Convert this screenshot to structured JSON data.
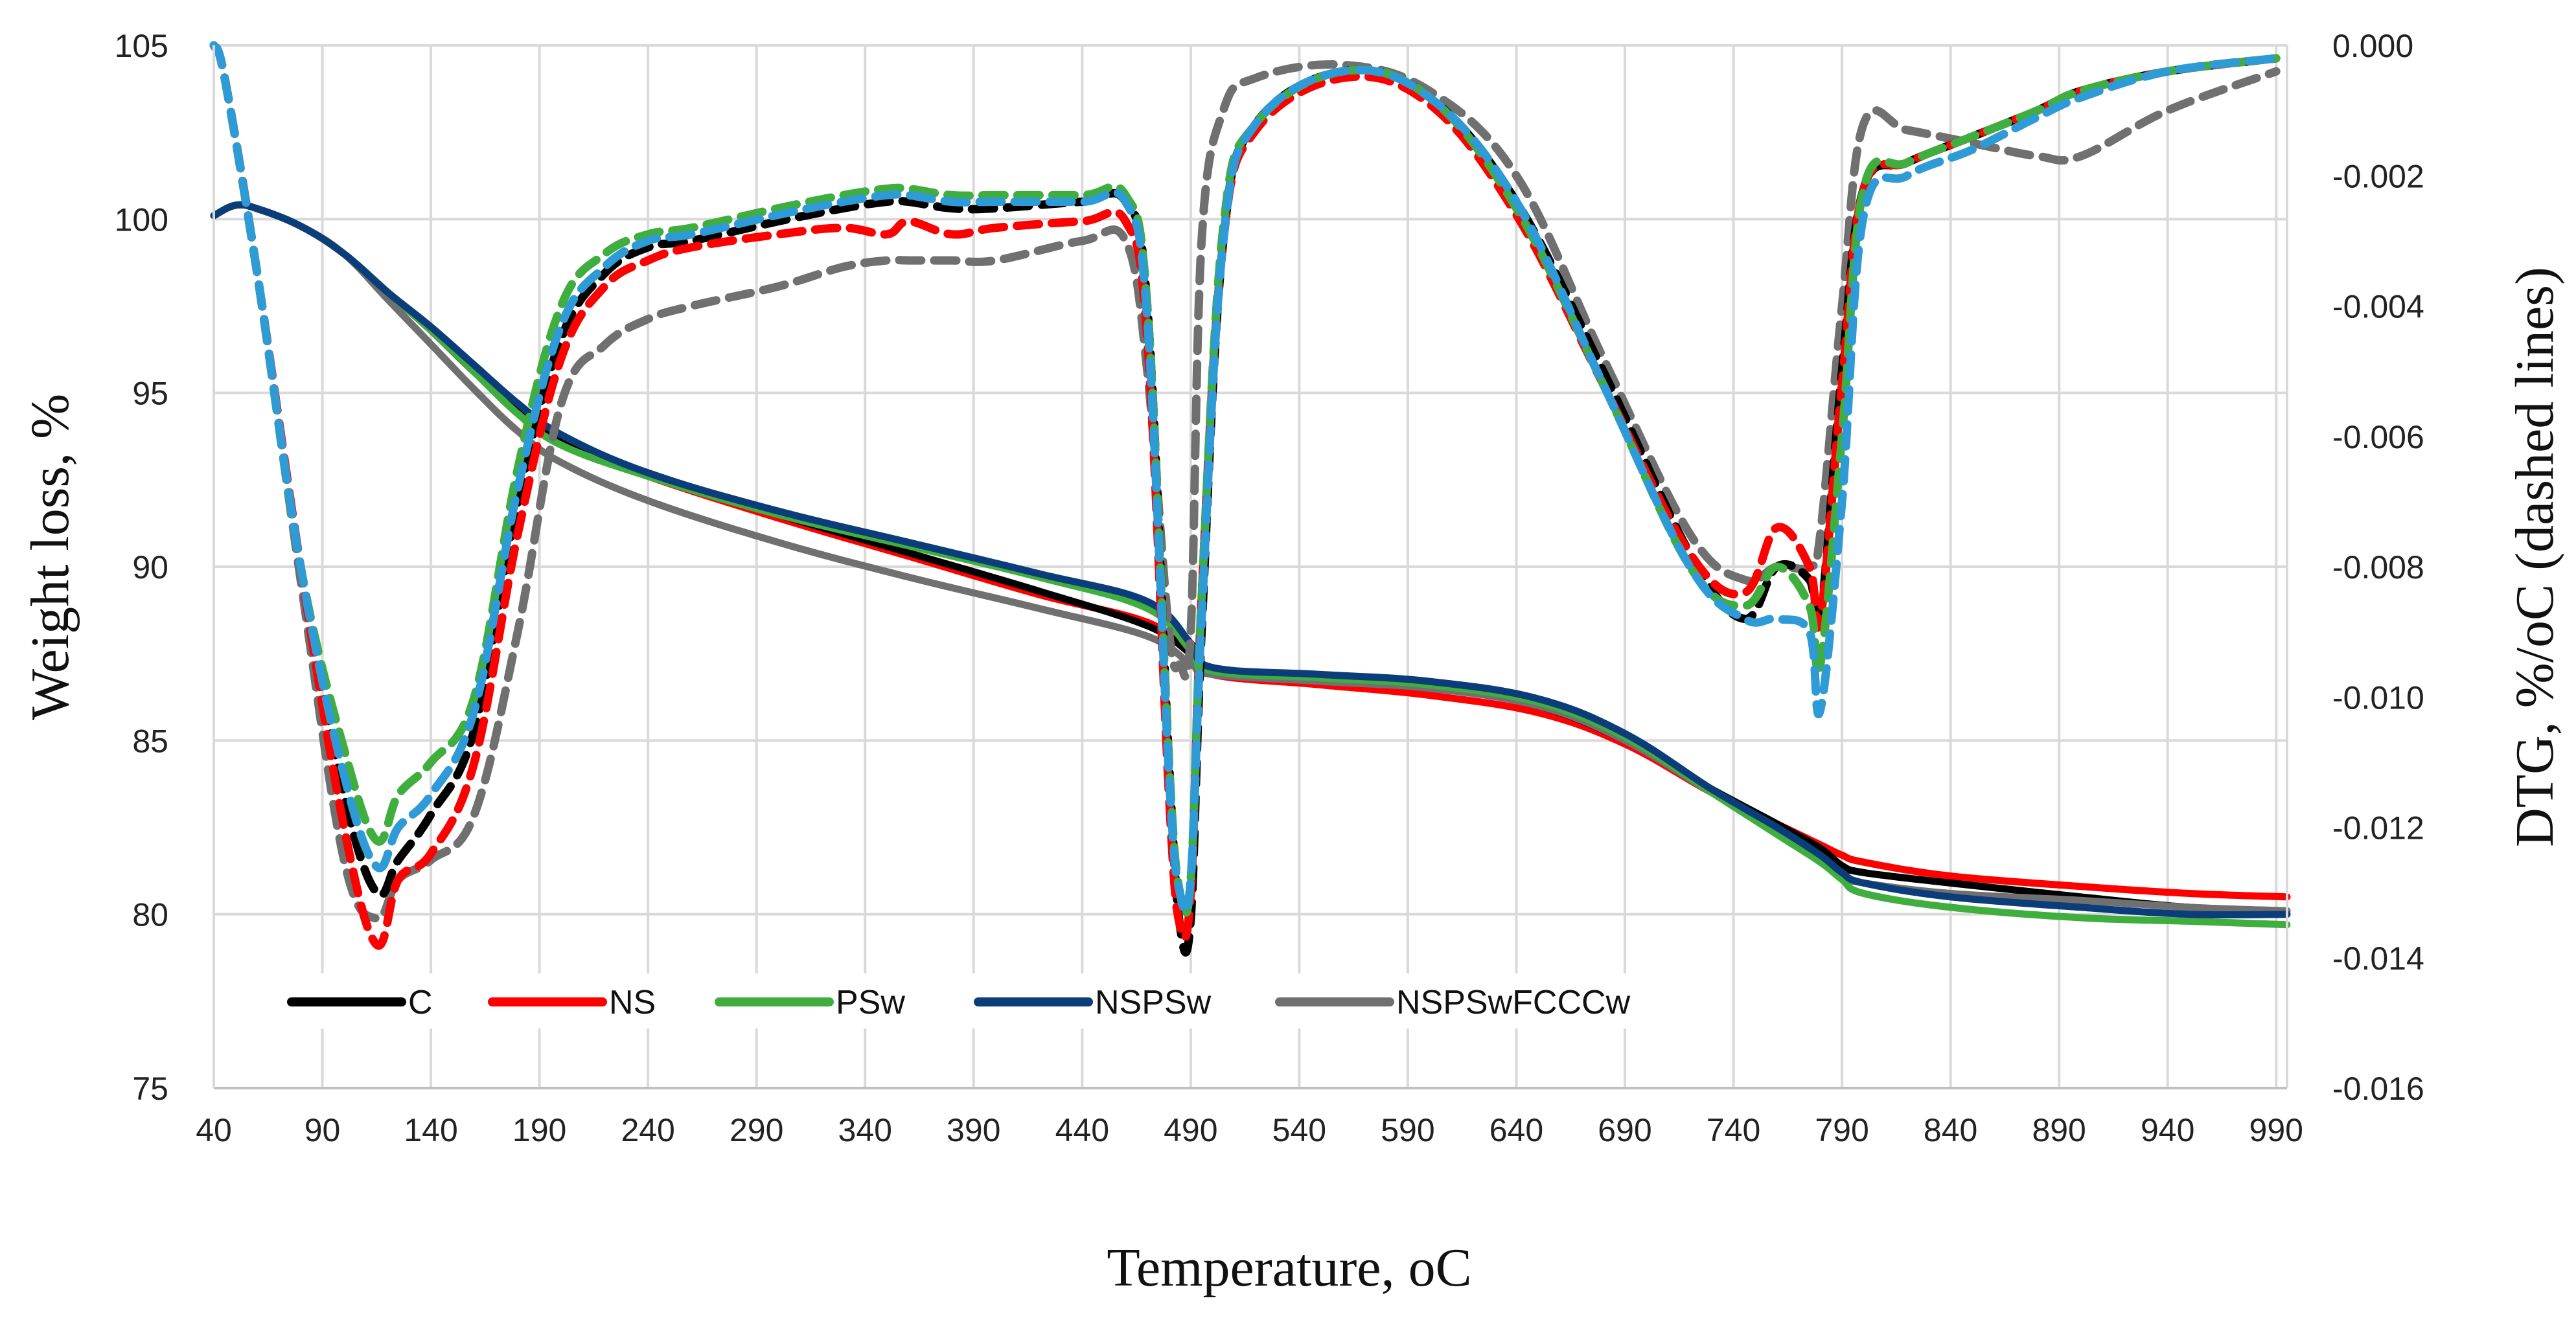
{
  "chart_data": {
    "type": "line",
    "xlabel": "Temperature, ",
    "xlabel_unit": "oC",
    "ylabel_left": "Weight loss, %",
    "ylabel_right": "DTG, %/oC (dashed lines)",
    "xlim": [
      40,
      995
    ],
    "ylim_left": [
      75,
      105
    ],
    "ylim_right": [
      -0.016,
      0.0
    ],
    "x_ticks": [
      "40",
      "90",
      "140",
      "190",
      "240",
      "290",
      "340",
      "390",
      "440",
      "490",
      "540",
      "590",
      "640",
      "690",
      "740",
      "790",
      "840",
      "890",
      "940",
      "990"
    ],
    "y_ticks_left": [
      "75",
      "80",
      "85",
      "90",
      "95",
      "100",
      "105"
    ],
    "y_ticks_right": [
      "-0.016",
      "-0.014",
      "-0.012",
      "-0.010",
      "-0.008",
      "-0.006",
      "-0.004",
      "-0.002",
      "0.000"
    ],
    "grid": true,
    "legend_position": "bottom-left",
    "legend": [
      "C",
      "NS",
      "PSw",
      "NSPSw",
      "NSPSwFCCCw"
    ],
    "colors": {
      "C": "#000000",
      "NS": "#ff0000",
      "PSw": "#3fae3f",
      "NSPSw": "#0b3d7a",
      "NSPSwFCCCw": "#707070",
      "NSPSw_dtg": "#2e9ad6"
    },
    "series_weight": [
      {
        "name": "C",
        "x": [
          40,
          50,
          60,
          80,
          100,
          120,
          140,
          160,
          180,
          200,
          240,
          300,
          360,
          420,
          470,
          490,
          500,
          550,
          600,
          650,
          690,
          730,
          760,
          780,
          790,
          800,
          840,
          900,
          950,
          995
        ],
        "y": [
          100.1,
          100.4,
          100.3,
          99.8,
          99.0,
          97.9,
          96.8,
          95.6,
          94.5,
          93.6,
          92.7,
          91.5,
          90.4,
          89.3,
          88.3,
          87.5,
          87.0,
          86.8,
          86.6,
          86.0,
          85.0,
          83.6,
          82.6,
          81.9,
          81.4,
          81.2,
          80.9,
          80.5,
          80.2,
          80.1
        ]
      },
      {
        "name": "NS",
        "x": [
          40,
          50,
          60,
          80,
          100,
          120,
          140,
          160,
          180,
          200,
          240,
          300,
          360,
          420,
          470,
          490,
          500,
          550,
          600,
          650,
          690,
          730,
          760,
          780,
          790,
          800,
          840,
          900,
          950,
          995
        ],
        "y": [
          100.1,
          100.4,
          100.3,
          99.8,
          99.0,
          97.9,
          96.8,
          95.6,
          94.5,
          93.6,
          92.6,
          91.4,
          90.3,
          89.2,
          88.4,
          87.5,
          86.9,
          86.6,
          86.3,
          85.8,
          84.9,
          83.5,
          82.6,
          82.0,
          81.7,
          81.5,
          81.1,
          80.8,
          80.6,
          80.5
        ]
      },
      {
        "name": "PSw",
        "x": [
          40,
          50,
          60,
          80,
          100,
          120,
          140,
          160,
          180,
          200,
          240,
          300,
          360,
          420,
          470,
          490,
          500,
          550,
          600,
          650,
          690,
          730,
          760,
          780,
          790,
          800,
          840,
          900,
          950,
          995
        ],
        "y": [
          100.1,
          100.4,
          100.3,
          99.8,
          99.0,
          97.9,
          96.8,
          95.6,
          94.4,
          93.5,
          92.6,
          91.5,
          90.6,
          89.7,
          88.8,
          87.6,
          87.0,
          86.8,
          86.6,
          86.1,
          85.1,
          83.5,
          82.3,
          81.5,
          81.0,
          80.6,
          80.2,
          79.9,
          79.8,
          79.7
        ]
      },
      {
        "name": "NSPSw",
        "x": [
          40,
          50,
          60,
          80,
          100,
          120,
          140,
          160,
          180,
          200,
          240,
          300,
          360,
          420,
          470,
          490,
          500,
          550,
          600,
          650,
          690,
          730,
          760,
          780,
          790,
          800,
          840,
          900,
          950,
          995
        ],
        "y": [
          100.1,
          100.4,
          100.3,
          99.8,
          99.0,
          97.9,
          96.9,
          95.8,
          94.7,
          93.8,
          92.7,
          91.6,
          90.7,
          89.8,
          89.0,
          87.8,
          87.1,
          86.9,
          86.7,
          86.2,
          85.2,
          83.6,
          82.5,
          81.7,
          81.2,
          80.9,
          80.5,
          80.2,
          80.0,
          80.0
        ]
      },
      {
        "name": "NSPSwFCCCw",
        "x": [
          40,
          50,
          60,
          80,
          100,
          120,
          140,
          160,
          180,
          200,
          240,
          300,
          360,
          420,
          470,
          490,
          500,
          550,
          600,
          650,
          690,
          730,
          760,
          780,
          790,
          800,
          840,
          900,
          950,
          995
        ],
        "y": [
          100.1,
          100.4,
          100.3,
          99.8,
          99.0,
          97.7,
          96.4,
          95.1,
          93.9,
          93.0,
          91.9,
          90.7,
          89.7,
          88.8,
          88.0,
          87.2,
          86.9,
          86.7,
          86.5,
          86.0,
          85.0,
          83.5,
          82.4,
          81.6,
          81.1,
          80.9,
          80.6,
          80.4,
          80.2,
          80.1
        ]
      }
    ],
    "series_dtg": [
      {
        "name": "C",
        "x": [
          40,
          45,
          60,
          80,
          100,
          115,
          125,
          140,
          160,
          180,
          200,
          220,
          240,
          260,
          300,
          330,
          350,
          360,
          380,
          400,
          440,
          460,
          470,
          480,
          485,
          490,
          495,
          505,
          520,
          560,
          600,
          640,
          680,
          720,
          745,
          760,
          775,
          780,
          790,
          800,
          820,
          850,
          880,
          900,
          940,
          990
        ],
        "y": [
          0.0,
          -0.0005,
          -0.0035,
          -0.008,
          -0.0115,
          -0.013,
          -0.0125,
          -0.0118,
          -0.0105,
          -0.007,
          -0.0045,
          -0.0035,
          -0.0031,
          -0.003,
          -0.0027,
          -0.0025,
          -0.0024,
          -0.0024,
          -0.0025,
          -0.0025,
          -0.0024,
          -0.0024,
          -0.004,
          -0.011,
          -0.0135,
          -0.0134,
          -0.009,
          -0.003,
          -0.0012,
          -0.0004,
          -0.0008,
          -0.0024,
          -0.005,
          -0.0078,
          -0.0088,
          -0.008,
          -0.0082,
          -0.0088,
          -0.005,
          -0.0022,
          -0.0018,
          -0.0014,
          -0.001,
          -0.0007,
          -0.0004,
          -0.0002
        ]
      },
      {
        "name": "NS",
        "x": [
          40,
          45,
          60,
          80,
          100,
          115,
          125,
          140,
          160,
          180,
          200,
          220,
          240,
          260,
          300,
          330,
          350,
          360,
          380,
          400,
          440,
          460,
          470,
          480,
          485,
          490,
          495,
          505,
          520,
          560,
          600,
          640,
          680,
          720,
          745,
          760,
          775,
          780,
          790,
          800,
          820,
          850,
          880,
          900,
          940,
          990
        ],
        "y": [
          0.0,
          -0.0005,
          -0.0035,
          -0.008,
          -0.012,
          -0.0138,
          -0.0128,
          -0.0124,
          -0.011,
          -0.0075,
          -0.0048,
          -0.0037,
          -0.0033,
          -0.0031,
          -0.0029,
          -0.0028,
          -0.0029,
          -0.0027,
          -0.0029,
          -0.0028,
          -0.0027,
          -0.0027,
          -0.0045,
          -0.0115,
          -0.0135,
          -0.013,
          -0.0085,
          -0.003,
          -0.0013,
          -0.0005,
          -0.0009,
          -0.0026,
          -0.0052,
          -0.0078,
          -0.0084,
          -0.0074,
          -0.008,
          -0.0088,
          -0.0052,
          -0.0022,
          -0.0018,
          -0.0014,
          -0.001,
          -0.0007,
          -0.0004,
          -0.0002
        ]
      },
      {
        "name": "PSw",
        "x": [
          40,
          45,
          60,
          80,
          100,
          115,
          125,
          140,
          160,
          180,
          200,
          220,
          240,
          260,
          300,
          330,
          350,
          360,
          380,
          400,
          440,
          460,
          470,
          480,
          485,
          490,
          495,
          505,
          520,
          560,
          600,
          640,
          680,
          720,
          745,
          760,
          775,
          780,
          790,
          800,
          820,
          850,
          880,
          900,
          940,
          990
        ],
        "y": [
          0.0,
          -0.0005,
          -0.0035,
          -0.008,
          -0.0108,
          -0.0122,
          -0.0115,
          -0.011,
          -0.01,
          -0.0065,
          -0.004,
          -0.0032,
          -0.0029,
          -0.0028,
          -0.0025,
          -0.0023,
          -0.0022,
          -0.0022,
          -0.0023,
          -0.0023,
          -0.0023,
          -0.0023,
          -0.004,
          -0.011,
          -0.013,
          -0.0128,
          -0.0085,
          -0.0028,
          -0.0012,
          -0.0004,
          -0.0008,
          -0.0025,
          -0.0052,
          -0.008,
          -0.0086,
          -0.008,
          -0.0086,
          -0.0095,
          -0.006,
          -0.0022,
          -0.0018,
          -0.0014,
          -0.001,
          -0.0007,
          -0.0004,
          -0.0002
        ]
      },
      {
        "name": "NSPSw",
        "x": [
          40,
          45,
          60,
          80,
          100,
          115,
          125,
          140,
          160,
          180,
          200,
          220,
          240,
          260,
          300,
          330,
          350,
          360,
          380,
          400,
          440,
          460,
          470,
          480,
          485,
          490,
          495,
          505,
          520,
          560,
          600,
          640,
          680,
          720,
          745,
          760,
          775,
          780,
          790,
          800,
          820,
          850,
          880,
          900,
          940,
          990
        ],
        "y": [
          0.0,
          -0.0005,
          -0.0035,
          -0.008,
          -0.0112,
          -0.0126,
          -0.012,
          -0.0115,
          -0.0102,
          -0.0068,
          -0.0043,
          -0.0034,
          -0.003,
          -0.0029,
          -0.0026,
          -0.0024,
          -0.0023,
          -0.0023,
          -0.0024,
          -0.0024,
          -0.0024,
          -0.0024,
          -0.0042,
          -0.0112,
          -0.013,
          -0.0128,
          -0.0088,
          -0.003,
          -0.0012,
          -0.0004,
          -0.0008,
          -0.0024,
          -0.0052,
          -0.008,
          -0.0088,
          -0.0088,
          -0.009,
          -0.0102,
          -0.007,
          -0.0026,
          -0.002,
          -0.0016,
          -0.0011,
          -0.0008,
          -0.0004,
          -0.0002
        ]
      },
      {
        "name": "NSPSwFCCCw",
        "x": [
          40,
          45,
          60,
          80,
          100,
          115,
          125,
          140,
          160,
          180,
          200,
          220,
          240,
          260,
          300,
          330,
          350,
          360,
          380,
          400,
          440,
          460,
          470,
          480,
          485,
          490,
          495,
          505,
          520,
          560,
          600,
          640,
          680,
          720,
          745,
          760,
          775,
          780,
          790,
          800,
          820,
          850,
          880,
          900,
          940,
          990
        ],
        "y": [
          0.0,
          -0.0005,
          -0.0035,
          -0.0082,
          -0.0125,
          -0.0134,
          -0.0128,
          -0.0125,
          -0.0118,
          -0.009,
          -0.0055,
          -0.0046,
          -0.0042,
          -0.004,
          -0.0037,
          -0.0034,
          -0.0033,
          -0.0033,
          -0.0033,
          -0.0033,
          -0.003,
          -0.003,
          -0.005,
          -0.009,
          -0.0095,
          -0.009,
          -0.003,
          -0.001,
          -0.0005,
          -0.0003,
          -0.0007,
          -0.002,
          -0.0048,
          -0.0075,
          -0.0082,
          -0.008,
          -0.008,
          -0.0075,
          -0.004,
          -0.0012,
          -0.0013,
          -0.0015,
          -0.0017,
          -0.0017,
          -0.001,
          -0.0004
        ]
      }
    ]
  }
}
